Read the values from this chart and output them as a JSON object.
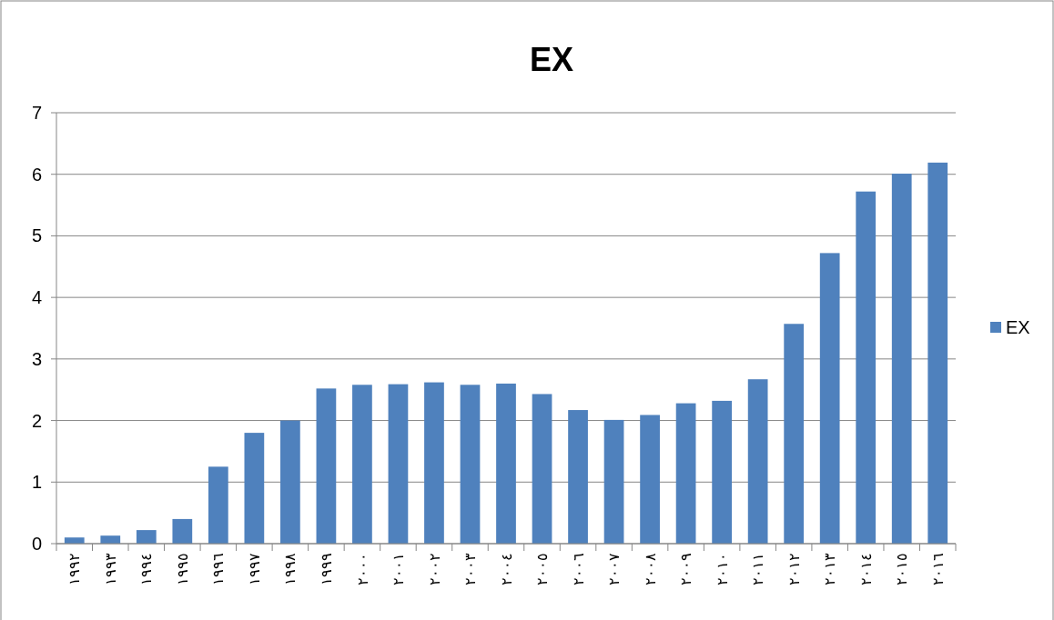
{
  "chart_data": {
    "type": "bar",
    "title": "EX",
    "categories": [
      "١٩٩٢",
      "١٩٩٣",
      "١٩٩٤",
      "١٩٩٥",
      "١٩٩٦",
      "١٩٩٧",
      "١٩٩٨",
      "١٩٩٩",
      "٢٠٠٠",
      "٢٠٠١",
      "٢٠٠٢",
      "٢٠٠٣",
      "٢٠٠٤",
      "٢٠٠٥",
      "٢٠٠٦",
      "٢٠٠٧",
      "٢٠٠٨",
      "٢٠٠٩",
      "٢٠١٠",
      "٢٠١١",
      "٢٠١٢",
      "٢٠١٣",
      "٢٠١٤",
      "٢٠١٥",
      "٢٠١٦"
    ],
    "series": [
      {
        "name": "EX",
        "color": "#4f81bd",
        "values": [
          0.1,
          0.13,
          0.22,
          0.4,
          1.25,
          1.8,
          2.0,
          2.52,
          2.58,
          2.59,
          2.62,
          2.58,
          2.6,
          2.43,
          2.17,
          2.01,
          2.09,
          2.28,
          2.32,
          2.67,
          3.57,
          4.72,
          5.72,
          6.01,
          6.19
        ]
      }
    ],
    "ylim": [
      0,
      7
    ],
    "yticks": [
      0,
      1,
      2,
      3,
      4,
      5,
      6,
      7
    ],
    "grid": "y",
    "legend": "right"
  }
}
